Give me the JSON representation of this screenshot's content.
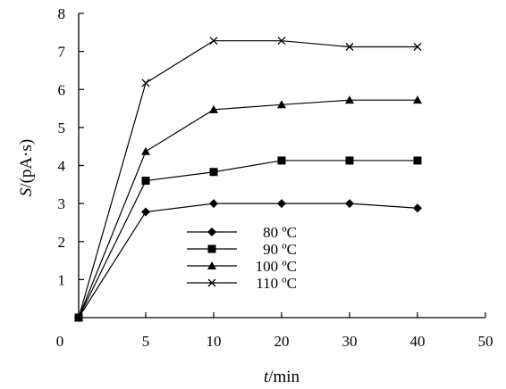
{
  "chart_data": {
    "type": "line",
    "x": [
      1,
      5,
      10,
      20,
      30,
      40
    ],
    "xticks": [
      "0",
      "5",
      "10",
      "20",
      "30",
      "40",
      "50"
    ],
    "yticks": [
      "1",
      "2",
      "3",
      "4",
      "5",
      "6",
      "7",
      "8"
    ],
    "ylim": [
      0,
      8
    ],
    "xlabel_var": "t",
    "xlabel_unit": "/min",
    "ylabel_var": "S",
    "ylabel_unit": "/(pA·s)",
    "grid": false,
    "legend_position": "lower-center",
    "series": [
      {
        "name": "80 ºC",
        "marker": "diamond",
        "values": [
          0,
          2.78,
          3.0,
          3.0,
          3.0,
          2.88
        ]
      },
      {
        "name": "90 ºC",
        "marker": "square",
        "values": [
          0,
          3.6,
          3.83,
          4.13,
          4.13,
          4.13
        ]
      },
      {
        "name": "100 ºC",
        "marker": "triangle",
        "values": [
          0,
          4.37,
          5.47,
          5.6,
          5.72,
          5.72
        ]
      },
      {
        "name": "110 ºC",
        "marker": "x",
        "values": [
          0,
          6.17,
          7.28,
          7.28,
          7.12,
          7.12
        ]
      }
    ]
  }
}
